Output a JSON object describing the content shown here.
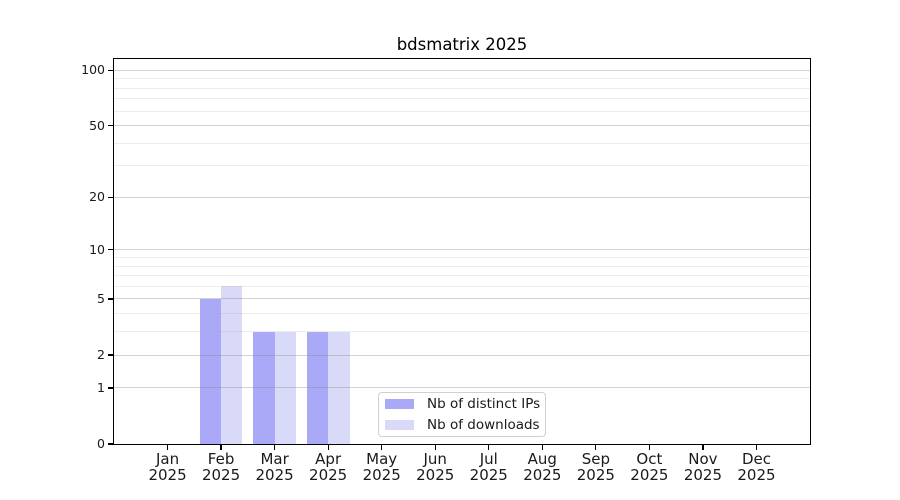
{
  "chart_data": {
    "type": "bar",
    "title": "bdsmatrix 2025",
    "categories": [
      "Jan",
      "Feb",
      "Mar",
      "Apr",
      "May",
      "Jun",
      "Jul",
      "Aug",
      "Sep",
      "Oct",
      "Nov",
      "Dec"
    ],
    "category_year_line": "2025",
    "series": [
      {
        "name": "Nb of distinct IPs",
        "color": "#a9a9f7",
        "values": [
          0,
          5,
          3,
          3,
          0,
          0,
          0,
          0,
          0,
          0,
          0,
          0
        ]
      },
      {
        "name": "Nb of downloads",
        "color": "#d9d9f8",
        "values": [
          0,
          6,
          3,
          3,
          0,
          0,
          0,
          0,
          0,
          0,
          0,
          0
        ]
      }
    ],
    "xlabel": "",
    "ylabel": "",
    "y_scale": "log1p",
    "ylim": [
      0,
      115
    ],
    "y_major_ticks": [
      0,
      1,
      2,
      5,
      10,
      20,
      50,
      100
    ],
    "y_minor_ticks": [
      3,
      4,
      6,
      7,
      8,
      9,
      30,
      40,
      60,
      70,
      80,
      90
    ],
    "grid": "horizontal",
    "legend_position": "bottom-center",
    "colors": {
      "axis": "#000000",
      "major_grid": "rgba(130,130,130,0.35)",
      "minor_grid": "rgba(170,170,170,0.22)",
      "text": "#1a1a1a",
      "background": "#ffffff",
      "legend_border": "#d0d0d0"
    }
  }
}
